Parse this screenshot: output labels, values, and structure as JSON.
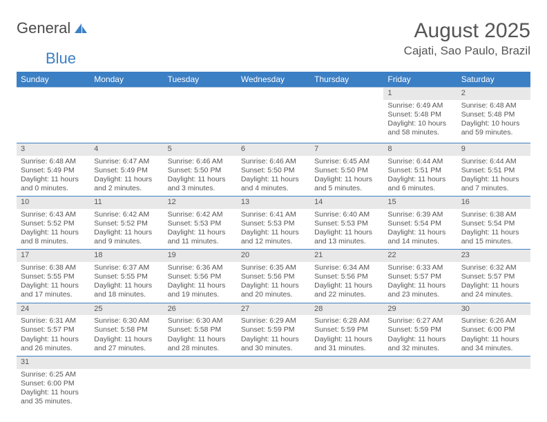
{
  "logo": {
    "general": "General",
    "blue": "Blue"
  },
  "title": "August 2025",
  "location": "Cajati, Sao Paulo, Brazil",
  "colors": {
    "header_bg": "#3b7fc4",
    "header_text": "#ffffff",
    "daynum_bg": "#e8e8e8",
    "border": "#3b7fc4",
    "text": "#555555",
    "logo_blue": "#3b7fc4"
  },
  "day_headers": [
    "Sunday",
    "Monday",
    "Tuesday",
    "Wednesday",
    "Thursday",
    "Friday",
    "Saturday"
  ],
  "weeks": [
    {
      "nums": [
        "",
        "",
        "",
        "",
        "",
        "1",
        "2"
      ],
      "cells": [
        null,
        null,
        null,
        null,
        null,
        {
          "sunrise": "Sunrise: 6:49 AM",
          "sunset": "Sunset: 5:48 PM",
          "day1": "Daylight: 10 hours",
          "day2": "and 58 minutes."
        },
        {
          "sunrise": "Sunrise: 6:48 AM",
          "sunset": "Sunset: 5:48 PM",
          "day1": "Daylight: 10 hours",
          "day2": "and 59 minutes."
        }
      ]
    },
    {
      "nums": [
        "3",
        "4",
        "5",
        "6",
        "7",
        "8",
        "9"
      ],
      "cells": [
        {
          "sunrise": "Sunrise: 6:48 AM",
          "sunset": "Sunset: 5:49 PM",
          "day1": "Daylight: 11 hours",
          "day2": "and 0 minutes."
        },
        {
          "sunrise": "Sunrise: 6:47 AM",
          "sunset": "Sunset: 5:49 PM",
          "day1": "Daylight: 11 hours",
          "day2": "and 2 minutes."
        },
        {
          "sunrise": "Sunrise: 6:46 AM",
          "sunset": "Sunset: 5:50 PM",
          "day1": "Daylight: 11 hours",
          "day2": "and 3 minutes."
        },
        {
          "sunrise": "Sunrise: 6:46 AM",
          "sunset": "Sunset: 5:50 PM",
          "day1": "Daylight: 11 hours",
          "day2": "and 4 minutes."
        },
        {
          "sunrise": "Sunrise: 6:45 AM",
          "sunset": "Sunset: 5:50 PM",
          "day1": "Daylight: 11 hours",
          "day2": "and 5 minutes."
        },
        {
          "sunrise": "Sunrise: 6:44 AM",
          "sunset": "Sunset: 5:51 PM",
          "day1": "Daylight: 11 hours",
          "day2": "and 6 minutes."
        },
        {
          "sunrise": "Sunrise: 6:44 AM",
          "sunset": "Sunset: 5:51 PM",
          "day1": "Daylight: 11 hours",
          "day2": "and 7 minutes."
        }
      ]
    },
    {
      "nums": [
        "10",
        "11",
        "12",
        "13",
        "14",
        "15",
        "16"
      ],
      "cells": [
        {
          "sunrise": "Sunrise: 6:43 AM",
          "sunset": "Sunset: 5:52 PM",
          "day1": "Daylight: 11 hours",
          "day2": "and 8 minutes."
        },
        {
          "sunrise": "Sunrise: 6:42 AM",
          "sunset": "Sunset: 5:52 PM",
          "day1": "Daylight: 11 hours",
          "day2": "and 9 minutes."
        },
        {
          "sunrise": "Sunrise: 6:42 AM",
          "sunset": "Sunset: 5:53 PM",
          "day1": "Daylight: 11 hours",
          "day2": "and 11 minutes."
        },
        {
          "sunrise": "Sunrise: 6:41 AM",
          "sunset": "Sunset: 5:53 PM",
          "day1": "Daylight: 11 hours",
          "day2": "and 12 minutes."
        },
        {
          "sunrise": "Sunrise: 6:40 AM",
          "sunset": "Sunset: 5:53 PM",
          "day1": "Daylight: 11 hours",
          "day2": "and 13 minutes."
        },
        {
          "sunrise": "Sunrise: 6:39 AM",
          "sunset": "Sunset: 5:54 PM",
          "day1": "Daylight: 11 hours",
          "day2": "and 14 minutes."
        },
        {
          "sunrise": "Sunrise: 6:38 AM",
          "sunset": "Sunset: 5:54 PM",
          "day1": "Daylight: 11 hours",
          "day2": "and 15 minutes."
        }
      ]
    },
    {
      "nums": [
        "17",
        "18",
        "19",
        "20",
        "21",
        "22",
        "23"
      ],
      "cells": [
        {
          "sunrise": "Sunrise: 6:38 AM",
          "sunset": "Sunset: 5:55 PM",
          "day1": "Daylight: 11 hours",
          "day2": "and 17 minutes."
        },
        {
          "sunrise": "Sunrise: 6:37 AM",
          "sunset": "Sunset: 5:55 PM",
          "day1": "Daylight: 11 hours",
          "day2": "and 18 minutes."
        },
        {
          "sunrise": "Sunrise: 6:36 AM",
          "sunset": "Sunset: 5:56 PM",
          "day1": "Daylight: 11 hours",
          "day2": "and 19 minutes."
        },
        {
          "sunrise": "Sunrise: 6:35 AM",
          "sunset": "Sunset: 5:56 PM",
          "day1": "Daylight: 11 hours",
          "day2": "and 20 minutes."
        },
        {
          "sunrise": "Sunrise: 6:34 AM",
          "sunset": "Sunset: 5:56 PM",
          "day1": "Daylight: 11 hours",
          "day2": "and 22 minutes."
        },
        {
          "sunrise": "Sunrise: 6:33 AM",
          "sunset": "Sunset: 5:57 PM",
          "day1": "Daylight: 11 hours",
          "day2": "and 23 minutes."
        },
        {
          "sunrise": "Sunrise: 6:32 AM",
          "sunset": "Sunset: 5:57 PM",
          "day1": "Daylight: 11 hours",
          "day2": "and 24 minutes."
        }
      ]
    },
    {
      "nums": [
        "24",
        "25",
        "26",
        "27",
        "28",
        "29",
        "30"
      ],
      "cells": [
        {
          "sunrise": "Sunrise: 6:31 AM",
          "sunset": "Sunset: 5:57 PM",
          "day1": "Daylight: 11 hours",
          "day2": "and 26 minutes."
        },
        {
          "sunrise": "Sunrise: 6:30 AM",
          "sunset": "Sunset: 5:58 PM",
          "day1": "Daylight: 11 hours",
          "day2": "and 27 minutes."
        },
        {
          "sunrise": "Sunrise: 6:30 AM",
          "sunset": "Sunset: 5:58 PM",
          "day1": "Daylight: 11 hours",
          "day2": "and 28 minutes."
        },
        {
          "sunrise": "Sunrise: 6:29 AM",
          "sunset": "Sunset: 5:59 PM",
          "day1": "Daylight: 11 hours",
          "day2": "and 30 minutes."
        },
        {
          "sunrise": "Sunrise: 6:28 AM",
          "sunset": "Sunset: 5:59 PM",
          "day1": "Daylight: 11 hours",
          "day2": "and 31 minutes."
        },
        {
          "sunrise": "Sunrise: 6:27 AM",
          "sunset": "Sunset: 5:59 PM",
          "day1": "Daylight: 11 hours",
          "day2": "and 32 minutes."
        },
        {
          "sunrise": "Sunrise: 6:26 AM",
          "sunset": "Sunset: 6:00 PM",
          "day1": "Daylight: 11 hours",
          "day2": "and 34 minutes."
        }
      ]
    },
    {
      "nums": [
        "31",
        "",
        "",
        "",
        "",
        "",
        ""
      ],
      "cells": [
        {
          "sunrise": "Sunrise: 6:25 AM",
          "sunset": "Sunset: 6:00 PM",
          "day1": "Daylight: 11 hours",
          "day2": "and 35 minutes."
        },
        null,
        null,
        null,
        null,
        null,
        null
      ],
      "last": true
    }
  ]
}
